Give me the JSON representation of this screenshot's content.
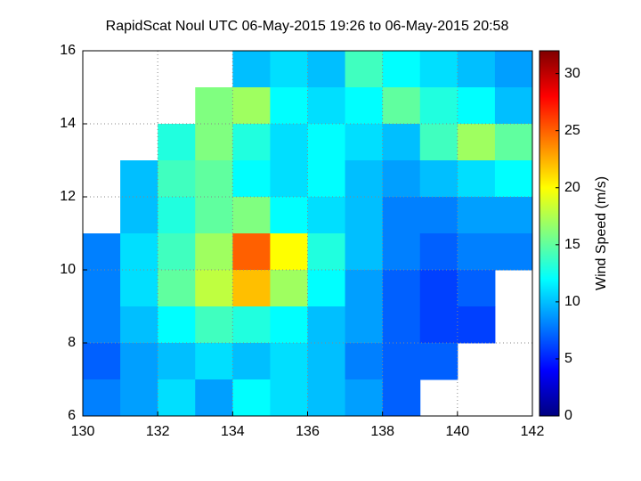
{
  "chart_data": {
    "type": "heatmap",
    "title": "RapidScat Noul UTC 06-May-2015 19:26 to 06-May-2015 20:58",
    "colorbar_label": "Wind Speed (m/s)",
    "colormap": "jet",
    "x": [
      130.5,
      131.5,
      132.5,
      133.5,
      134.5,
      135.5,
      136.5,
      137.5,
      138.5,
      139.5,
      140.5,
      141.5
    ],
    "y": [
      15.5,
      14.5,
      13.5,
      12.5,
      11.5,
      10.5,
      9.5,
      8.5,
      7.5,
      6.5
    ],
    "z": [
      [
        null,
        null,
        null,
        null,
        10,
        11,
        10,
        14,
        12,
        11,
        10,
        9
      ],
      [
        null,
        null,
        null,
        16,
        17,
        12,
        11,
        12,
        15,
        13,
        12,
        10
      ],
      [
        null,
        null,
        13,
        16,
        13,
        11,
        12,
        11,
        10,
        14,
        17,
        15
      ],
      [
        null,
        10,
        14,
        15,
        12,
        11,
        12,
        10,
        9,
        10,
        11,
        12
      ],
      [
        null,
        10,
        13,
        15,
        16,
        12,
        11,
        10,
        8,
        8,
        9,
        9
      ],
      [
        8,
        11,
        14,
        17,
        25,
        20,
        13,
        10,
        8,
        7,
        8,
        8
      ],
      [
        8,
        11,
        15,
        18,
        22,
        17,
        12,
        9,
        7,
        6,
        7,
        null
      ],
      [
        8,
        10,
        12,
        14,
        13,
        12,
        10,
        9,
        7,
        6,
        6,
        null
      ],
      [
        7,
        9,
        10,
        11,
        10,
        11,
        10,
        8,
        7,
        7,
        null,
        null
      ],
      [
        8,
        9,
        11,
        9,
        12,
        11,
        10,
        9,
        7,
        null,
        null,
        null
      ]
    ],
    "xlim": [
      130,
      142
    ],
    "xticks": [
      130,
      132,
      134,
      136,
      138,
      140,
      142
    ],
    "ylim": [
      6,
      16
    ],
    "yticks": [
      6,
      8,
      10,
      12,
      14,
      16
    ],
    "clim": [
      0,
      32
    ],
    "cticks": [
      0,
      5,
      10,
      15,
      20,
      25,
      30
    ],
    "grid": true
  }
}
